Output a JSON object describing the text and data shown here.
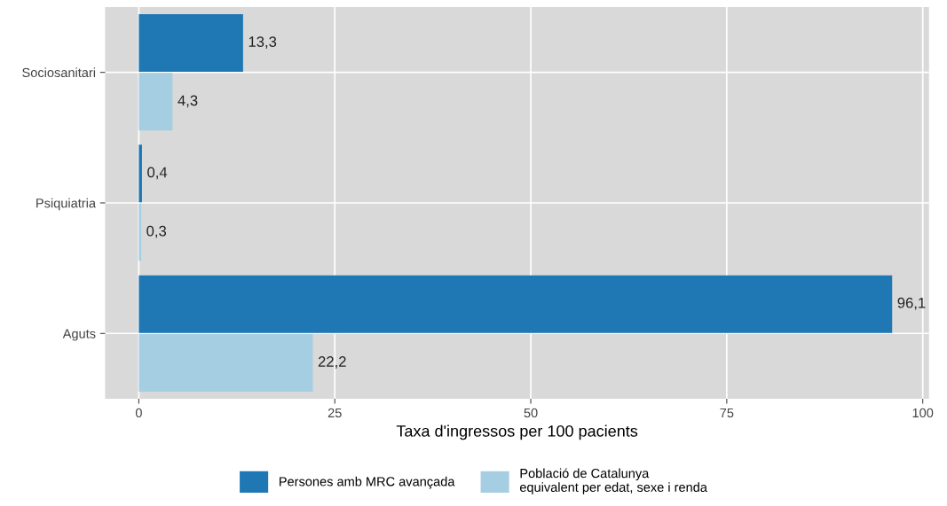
{
  "chart_data": {
    "type": "bar",
    "orientation": "horizontal",
    "xlabel": "Taxa d'ingressos per 100 pacients",
    "categories": [
      "Sociosanitari",
      "Psiquiatria",
      "Aguts"
    ],
    "series": [
      {
        "name": "Persones amb MRC avançada",
        "color": "#1f78b4",
        "values": [
          13.3,
          0.4,
          96.1
        ],
        "value_labels": [
          "13,3",
          "0,4",
          "96,1"
        ]
      },
      {
        "name": "Població de Catalunya\nequivalent per edat, sexe i renda",
        "color": "#a6cee3",
        "values": [
          4.3,
          0.3,
          22.2
        ],
        "value_labels": [
          "4,3",
          "0,3",
          "22,2"
        ]
      }
    ],
    "xlim": [
      -4.3,
      100.8
    ],
    "xticks": [
      0,
      25,
      50,
      75,
      100
    ],
    "grid": true,
    "legend": "bottom"
  }
}
